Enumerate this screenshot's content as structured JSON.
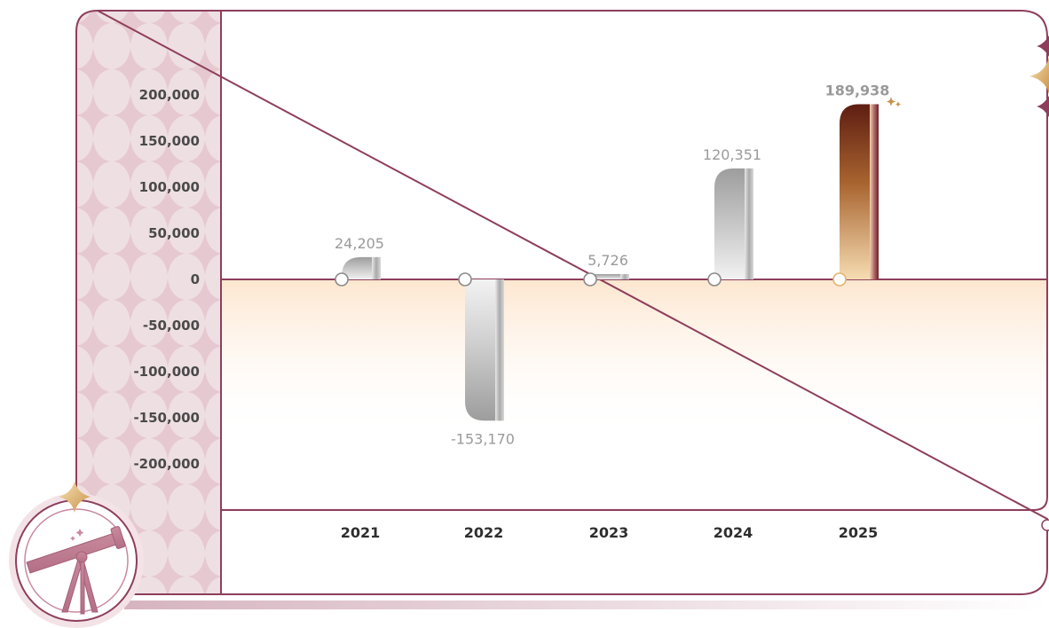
{
  "chart_data": {
    "type": "bar",
    "categories": [
      "2021",
      "2022",
      "2023",
      "2024",
      "2025"
    ],
    "values": [
      24205,
      -153170,
      5726,
      120351,
      189938
    ],
    "value_labels": [
      "24,205",
      "-153,170",
      "5,726",
      "120,351",
      "189,938"
    ],
    "highlight_category": "2025",
    "yticks": [
      "200,000",
      "150,000",
      "100,000",
      "50,000",
      "0",
      "-50,000",
      "-100,000",
      "-150,000",
      "-200,000"
    ],
    "ylim": [
      -200000,
      200000
    ],
    "title": "",
    "xlabel": "",
    "ylabel": "",
    "grid": false
  },
  "colors": {
    "frame": "#8e3e5c",
    "highlight_text": "#a0426a",
    "sidebar": "#eedfe3",
    "negative_zone": "#fde9d6",
    "silver_bar": "#b8b8b8",
    "bronze_bar": "#7a3416"
  },
  "icons": {
    "badge": "telescope-icon"
  }
}
